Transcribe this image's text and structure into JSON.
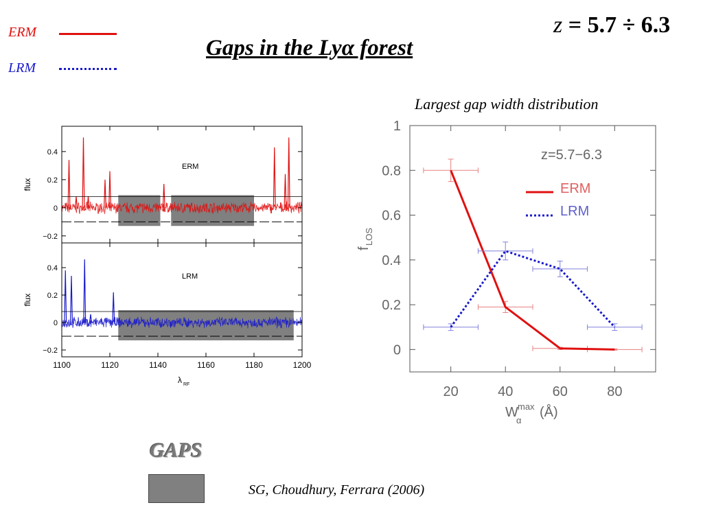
{
  "colors": {
    "erm": "#e01010",
    "lrm": "#1a1acc",
    "gap_fill": "#808080"
  },
  "header": {
    "legend": [
      {
        "label": "ERM",
        "style": "solid",
        "color": "#e01010"
      },
      {
        "label": "LRM",
        "style": "dotted",
        "color": "#1a1acc"
      }
    ],
    "title": "Gaps in the Lyα forest",
    "redshift": {
      "z": "z",
      "eq": " = 5.7 ÷ 6.3"
    }
  },
  "footer": {
    "gaps_label": "GAPS",
    "citation": "SG, Choudhury, Ferrara (2006)"
  },
  "chart_data": [
    {
      "type": "line",
      "name": "spectrum-panels",
      "xlabel": "λ",
      "xlabel_sub": "RF",
      "xlim": [
        1100,
        1200
      ],
      "x_ticks": [
        "1100",
        "1120",
        "1140",
        "1160",
        "1180",
        "1200"
      ],
      "panels": [
        {
          "label": "ERM",
          "ylabel": "flux",
          "ylim": [
            -0.25,
            0.58
          ],
          "y_ticks": [
            "0.4",
            "0.2",
            "0",
            "−0.2"
          ],
          "y_tick_values": [
            0.4,
            0.2,
            0,
            -0.2
          ],
          "threshold_upper": 0.08,
          "threshold_lower": -0.1,
          "gaps": [
            [
              1123.5,
              1141
            ],
            [
              1145.5,
              1180
            ]
          ],
          "peaks": [
            {
              "x": 1103,
              "y": 0.34
            },
            {
              "x": 1106,
              "y": 0.08
            },
            {
              "x": 1109,
              "y": 0.5
            },
            {
              "x": 1111,
              "y": 0.08
            },
            {
              "x": 1118,
              "y": 0.2
            },
            {
              "x": 1120,
              "y": 0.26
            },
            {
              "x": 1142.5,
              "y": 0.17
            },
            {
              "x": 1188.5,
              "y": 0.43
            },
            {
              "x": 1193,
              "y": 0.24
            },
            {
              "x": 1194.5,
              "y": 0.5
            }
          ]
        },
        {
          "label": "LRM",
          "ylabel": "flux",
          "ylim": [
            -0.25,
            0.58
          ],
          "y_ticks": [
            "0.4",
            "0.2",
            "0",
            "−0.2"
          ],
          "y_tick_values": [
            0.4,
            0.2,
            0,
            -0.2
          ],
          "threshold_upper": 0.08,
          "threshold_lower": -0.1,
          "gaps": [
            [
              1123.5,
              1196.5
            ]
          ],
          "peaks": [
            {
              "x": 1101.5,
              "y": 0.38
            },
            {
              "x": 1104,
              "y": 0.34
            },
            {
              "x": 1109.5,
              "y": 0.46
            },
            {
              "x": 1112,
              "y": 0.06
            },
            {
              "x": 1121.5,
              "y": 0.22
            }
          ]
        }
      ]
    },
    {
      "type": "line",
      "name": "gap-width-distribution",
      "title": "Largest gap width distribution",
      "annotation": "z=5.7−6.3",
      "xlabel": "W",
      "xlabel_sup": "max",
      "xlabel_sub": "α",
      "xlabel_unit": "(Å)",
      "ylabel": "f",
      "ylabel_sub": "LOS",
      "xlim": [
        5,
        95
      ],
      "ylim": [
        -0.1,
        1.0
      ],
      "x_ticks": [
        20,
        40,
        60,
        80
      ],
      "y_ticks": [
        0,
        0.2,
        0.4,
        0.6,
        0.8,
        1
      ],
      "y_tick_labels": [
        "0",
        "0.2",
        "0.4",
        "0.6",
        "0.8",
        "1"
      ],
      "x_err_halfwidth": 10,
      "series": [
        {
          "name": "ERM",
          "style": "solid",
          "color": "#e01010",
          "x": [
            20,
            40,
            60,
            80
          ],
          "y": [
            0.8,
            0.19,
            0.005,
            0.0
          ],
          "yerr": [
            0.05,
            0.025,
            0.005,
            0.003
          ]
        },
        {
          "name": "LRM",
          "style": "dotted",
          "color": "#1a1acc",
          "x": [
            20,
            40,
            60,
            80
          ],
          "y": [
            0.1,
            0.44,
            0.36,
            0.1
          ],
          "yerr": [
            0.015,
            0.04,
            0.035,
            0.015
          ]
        }
      ]
    }
  ]
}
